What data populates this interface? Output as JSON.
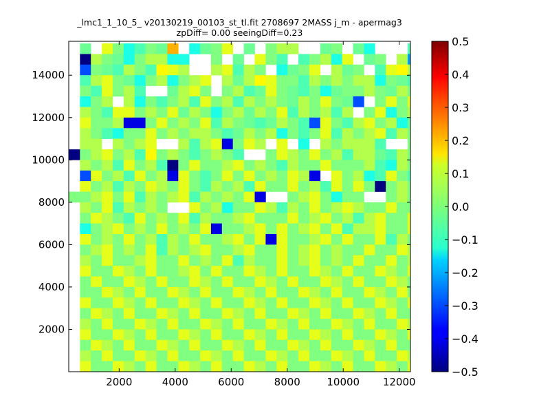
{
  "chart_data": {
    "type": "heatmap",
    "title": "_lmc1_1_10_5_ v20130219_00103_st_tl.fit 2708697 2MASS j_m - apermag3",
    "subtitle": "zpDiff= 0.00 seeingDiff=0.23",
    "xlabel": "",
    "ylabel": "",
    "xlim": [
      200,
      12400
    ],
    "ylim": [
      0,
      15600
    ],
    "clim": [
      -0.5,
      0.5
    ],
    "colormap": "jet",
    "grid": false,
    "xticks": [
      "2000",
      "4000",
      "6000",
      "8000",
      "10000",
      "12000"
    ],
    "yticks": [
      "2000",
      "4000",
      "6000",
      "8000",
      "10000",
      "12000",
      "14000"
    ],
    "colorbar_ticks": [
      "0.5",
      "0.4",
      "0.3",
      "0.2",
      "0.1",
      "0.0",
      "−0.1",
      "−0.2",
      "−0.3",
      "−0.4",
      "−0.5"
    ],
    "x_bin_start": 600,
    "y_bin_start": 0,
    "bin_size_x": 390,
    "bin_size_y": 500,
    "rows_from_top": [
      "    CDcBaABCH aCBc C Bbb  CB Ca   A   Ab    ",
      "    xbBCaBbbaa  B C cBA ABbac CB bt BbCB bAx",
      "    lBCAbBAdcb  bcAbB aCBc bCB AcdbBCBcb lcA",
      "    AbcBCaBbaBbc bCbdcBBAbBbBbbaBCAcCbBBcCBb",
      "    BAcBbA  CbcB BbACcBCABaCBBbBCbBaBBbCBAbc",
      "    aBb baBABbAcBbAbBbBCbBcBCl BcBcBAcbcBbbB",
      "    bBAccBbBcCbBaBbCbBcAbBbAb BcaBbc   BdcBb",
      "    cBBbmmBcBbBcAbBCACbBAlcBAbcBbaCBbcBB BcBb",
      "    bBAaBBcBbBbbBACbBbaBABcAbBbcAbBbBaACbC cB",
      "    bb bBbc  bAbcmBcb c a bBbbbA  BCbbcb cmAx",
      "   xBbcBbAdBbBABbBA  BcbBcBbAbbCAbBABcBcBcBA",
      "    bBbAcBbAxBcBBbcBbBAbBBcBBBbAabBBcBbAbdtBb",
      "    lcBbAcBbmcBABcBcBbBcbm cBbaAcBAcBc  BbcBb",
      "    cBbAbBcbBcBAbBbAcBBcBbAcBcBxBbBcBAb BcbBA",
      "   BBbcBcAbBbcAbBbBcm  BbcBaBB  BbBmcBBcb Bc",
      "    bBcAbBbB  cBbaBBcbAbBcBbcbBBcBBcmcB bcBbA",
      "    BcbBAcBbBcAbBBbcBBBcBbcBbAbcBBcBmcBBbcBBl",
      "    aBbcBbBcBbBcmBBbcBcBbcBcAbbcBBcbBcBBcbbBB",
      "    cBbBcBbAbBcBBbcBcmcBBbcBcBBcAbBcBbcbBcBbB",
      "    BbcBbBcAbBbcBBbcBBcBbcBbBBcBBcbAcBbBcBcBB",
      "    bBcBBbcBBcBbBcAbBBcBbcBbBcBBcBbcBcBBbcBBc",
      "    cBBcbBcBBbcBcBBcbBcBBcbBcBBcbBcBBcbBcBBcb",
      "    BcBBcbBcBBcbBcBBcbBcBBcbBcBBcbBcBBcbBcBBc",
      "    BBcbBcBBcbBcBBcbBcBBcbBcBBcbBcBBcbBcBBcbB",
      "    cBBcbBcBBcbBcBBcbBcBBcbBcBBcbBcBBcbBcBBcb",
      "    BcbBcBBcbBcBBcbBcBBcbBcBBcbBcBBcbBcBBcbBc",
      "    bBcBBcbBcBBcbBcBBcbBcBBcbBcBBcbBcBBcbBcBB",
      "    cBBcbBcBBcbBcBBcbBcBBcbBcBBcbBcBBcbBcBBcb",
      "    BcbBcBBcbBcBBcbBcBBcbBcBBcbBcBBcbBcBBcbBc",
      "    bBcBBcbBcBBcbBcBBcbBcBBcbBcBBcbBcBBcbBcBB",
      "    cBBcbBcBBcbBcBBcbBcBBcbBcBBcbBcBBcbBcBBcb"
    ],
    "value_codes": {
      "x": -0.5,
      "m": -0.4,
      "l": -0.3,
      "t": -0.22,
      "a": -0.1,
      "A": -0.05,
      "B": 0.0,
      "b": 0.05,
      "C": -0.02,
      "c": 0.1,
      "d": 0.13,
      "H": 0.2
    }
  }
}
